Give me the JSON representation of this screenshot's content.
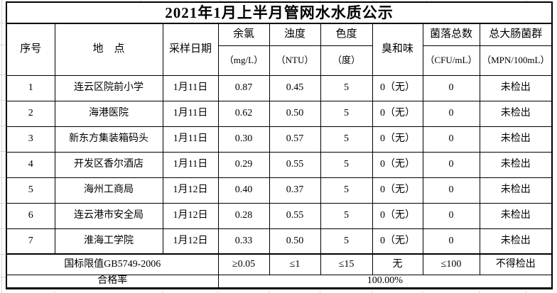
{
  "title": "2021年1月上半月管网水水质公示",
  "table": {
    "header": {
      "no": "序号",
      "location": "地　点",
      "date": "采样日期",
      "residual_chlorine": "余氯",
      "residual_chlorine_unit": "（mg/L）",
      "turbidity": "浊度",
      "turbidity_unit": "（NTU）",
      "chroma": "色度",
      "chroma_unit": "（度）",
      "odor_taste": "臭和味",
      "colony_count": "菌落总数",
      "colony_count_unit": "（CFU/mL）",
      "total_coliform": "总大肠菌群",
      "total_coliform_unit": "（MPN/100mL）"
    },
    "rows": [
      [
        "1",
        "连云区院前小学",
        "1月11日",
        "0.87",
        "0.45",
        "5",
        "0（无）",
        "0",
        "未检出"
      ],
      [
        "2",
        "海港医院",
        "1月11日",
        "0.62",
        "0.50",
        "5",
        "0（无）",
        "0",
        "未检出"
      ],
      [
        "3",
        "新东方集装箱码头",
        "1月11日",
        "0.30",
        "0.57",
        "5",
        "0（无）",
        "0",
        "未检出"
      ],
      [
        "4",
        "开发区香尔酒店",
        "1月11日",
        "0.29",
        "0.55",
        "5",
        "0（无）",
        "0",
        "未检出"
      ],
      [
        "5",
        "海州工商局",
        "1月12日",
        "0.40",
        "0.37",
        "5",
        "0（无）",
        "0",
        "未检出"
      ],
      [
        "6",
        "连云港市安全局",
        "1月12日",
        "0.28",
        "0.55",
        "5",
        "0（无）",
        "0",
        "未检出"
      ],
      [
        "7",
        "淮海工学院",
        "1月12日",
        "0.33",
        "0.50",
        "5",
        "0（无）",
        "0",
        "未检出"
      ]
    ],
    "limit_row": {
      "label": "国标限值GB5749-2006",
      "values": [
        "≥0.05",
        "≤1",
        "≤15",
        "无",
        "≤100",
        "不得检出"
      ]
    },
    "rate_row": {
      "label": "合格率",
      "value": "100.00%"
    }
  },
  "colors": {
    "text": "#000000",
    "border": "#000000",
    "background": "#ffffff",
    "gridline": "#d9d9d9"
  }
}
